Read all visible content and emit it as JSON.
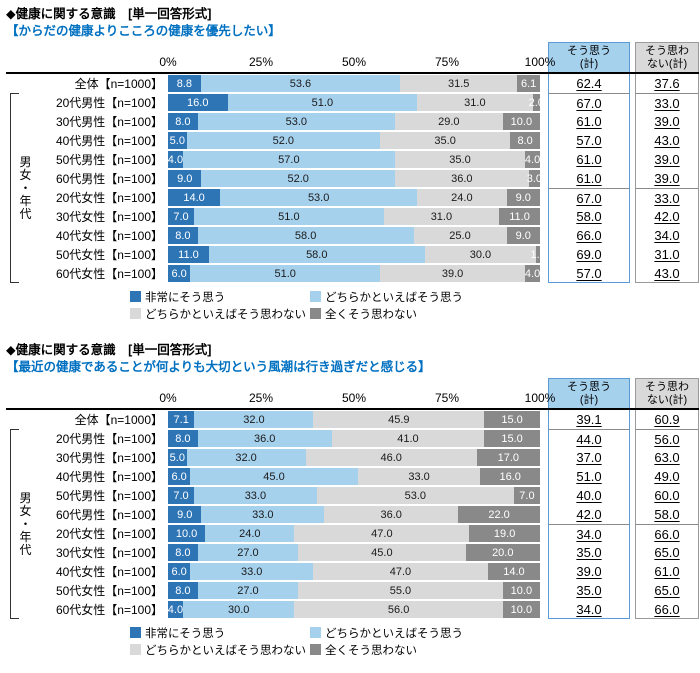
{
  "colors": {
    "seg1": "#2E75B6",
    "seg2": "#A6D1ED",
    "seg3": "#D9D9D9",
    "seg4": "#898989",
    "subheading": "#0070C0",
    "agree_header_bg": "#A6D1ED",
    "disagree_header_bg": "#D9D9D9"
  },
  "chart_data": [
    {
      "type": "bar",
      "stacked": true,
      "orientation": "horizontal",
      "xlim": [
        0,
        100
      ],
      "heading": "◆健康に関する意識　[単一回答形式]",
      "subheading": "【からだの健康よりこころの健康を優先したい】",
      "axis_ticks": [
        "0%",
        "25%",
        "50%",
        "75%",
        "100%"
      ],
      "group_label": "男女・年代",
      "agree_header": "そう思う\n(計)",
      "disagree_header": "そう思わ\nない(計)",
      "legend": [
        "非常にそう思う",
        "どちらかといえばそう思う",
        "どちらかといえばそう思わない",
        "全くそう思わない"
      ],
      "rows": [
        {
          "label": "全体【n=1000】",
          "values": [
            8.8,
            53.6,
            31.5,
            6.1
          ],
          "agree": "62.4",
          "disagree": "37.6"
        },
        {
          "label": "20代男性【n=100】",
          "values": [
            16.0,
            51.0,
            31.0,
            2.0
          ],
          "agree": "67.0",
          "disagree": "33.0"
        },
        {
          "label": "30代男性【n=100】",
          "values": [
            8.0,
            53.0,
            29.0,
            10.0
          ],
          "agree": "61.0",
          "disagree": "39.0"
        },
        {
          "label": "40代男性【n=100】",
          "values": [
            5.0,
            52.0,
            35.0,
            8.0
          ],
          "agree": "57.0",
          "disagree": "43.0"
        },
        {
          "label": "50代男性【n=100】",
          "values": [
            4.0,
            57.0,
            35.0,
            4.0
          ],
          "agree": "61.0",
          "disagree": "39.0"
        },
        {
          "label": "60代男性【n=100】",
          "values": [
            9.0,
            52.0,
            36.0,
            3.0
          ],
          "agree": "61.0",
          "disagree": "39.0"
        },
        {
          "label": "20代女性【n=100】",
          "values": [
            14.0,
            53.0,
            24.0,
            9.0
          ],
          "agree": "67.0",
          "disagree": "33.0"
        },
        {
          "label": "30代女性【n=100】",
          "values": [
            7.0,
            51.0,
            31.0,
            11.0
          ],
          "agree": "58.0",
          "disagree": "42.0"
        },
        {
          "label": "40代女性【n=100】",
          "values": [
            8.0,
            58.0,
            25.0,
            9.0
          ],
          "agree": "66.0",
          "disagree": "34.0"
        },
        {
          "label": "50代女性【n=100】",
          "values": [
            11.0,
            58.0,
            30.0,
            1.0
          ],
          "agree": "69.0",
          "disagree": "31.0"
        },
        {
          "label": "60代女性【n=100】",
          "values": [
            6.0,
            51.0,
            39.0,
            4.0
          ],
          "agree": "57.0",
          "disagree": "43.0"
        }
      ]
    },
    {
      "type": "bar",
      "stacked": true,
      "orientation": "horizontal",
      "xlim": [
        0,
        100
      ],
      "heading": "◆健康に関する意識　[単一回答形式]",
      "subheading": "【最近の健康であることが何よりも大切という風潮は行き過ぎだと感じる】",
      "axis_ticks": [
        "0%",
        "25%",
        "50%",
        "75%",
        "100%"
      ],
      "group_label": "男女・年代",
      "agree_header": "そう思う\n(計)",
      "disagree_header": "そう思わ\nない(計)",
      "legend": [
        "非常にそう思う",
        "どちらかといえばそう思う",
        "どちらかといえばそう思わない",
        "全くそう思わない"
      ],
      "rows": [
        {
          "label": "全体【n=1000】",
          "values": [
            7.1,
            32.0,
            45.9,
            15.0
          ],
          "agree": "39.1",
          "disagree": "60.9"
        },
        {
          "label": "20代男性【n=100】",
          "values": [
            8.0,
            36.0,
            41.0,
            15.0
          ],
          "agree": "44.0",
          "disagree": "56.0"
        },
        {
          "label": "30代男性【n=100】",
          "values": [
            5.0,
            32.0,
            46.0,
            17.0
          ],
          "agree": "37.0",
          "disagree": "63.0"
        },
        {
          "label": "40代男性【n=100】",
          "values": [
            6.0,
            45.0,
            33.0,
            16.0
          ],
          "agree": "51.0",
          "disagree": "49.0"
        },
        {
          "label": "50代男性【n=100】",
          "values": [
            7.0,
            33.0,
            53.0,
            7.0
          ],
          "agree": "40.0",
          "disagree": "60.0"
        },
        {
          "label": "60代男性【n=100】",
          "values": [
            9.0,
            33.0,
            36.0,
            22.0
          ],
          "agree": "42.0",
          "disagree": "58.0"
        },
        {
          "label": "20代女性【n=100】",
          "values": [
            10.0,
            24.0,
            47.0,
            19.0
          ],
          "agree": "34.0",
          "disagree": "66.0"
        },
        {
          "label": "30代女性【n=100】",
          "values": [
            8.0,
            27.0,
            45.0,
            20.0
          ],
          "agree": "35.0",
          "disagree": "65.0"
        },
        {
          "label": "40代女性【n=100】",
          "values": [
            6.0,
            33.0,
            47.0,
            14.0
          ],
          "agree": "39.0",
          "disagree": "61.0"
        },
        {
          "label": "50代女性【n=100】",
          "values": [
            8.0,
            27.0,
            55.0,
            10.0
          ],
          "agree": "35.0",
          "disagree": "65.0"
        },
        {
          "label": "60代女性【n=100】",
          "values": [
            4.0,
            30.0,
            56.0,
            10.0
          ],
          "agree": "34.0",
          "disagree": "66.0"
        }
      ]
    }
  ]
}
